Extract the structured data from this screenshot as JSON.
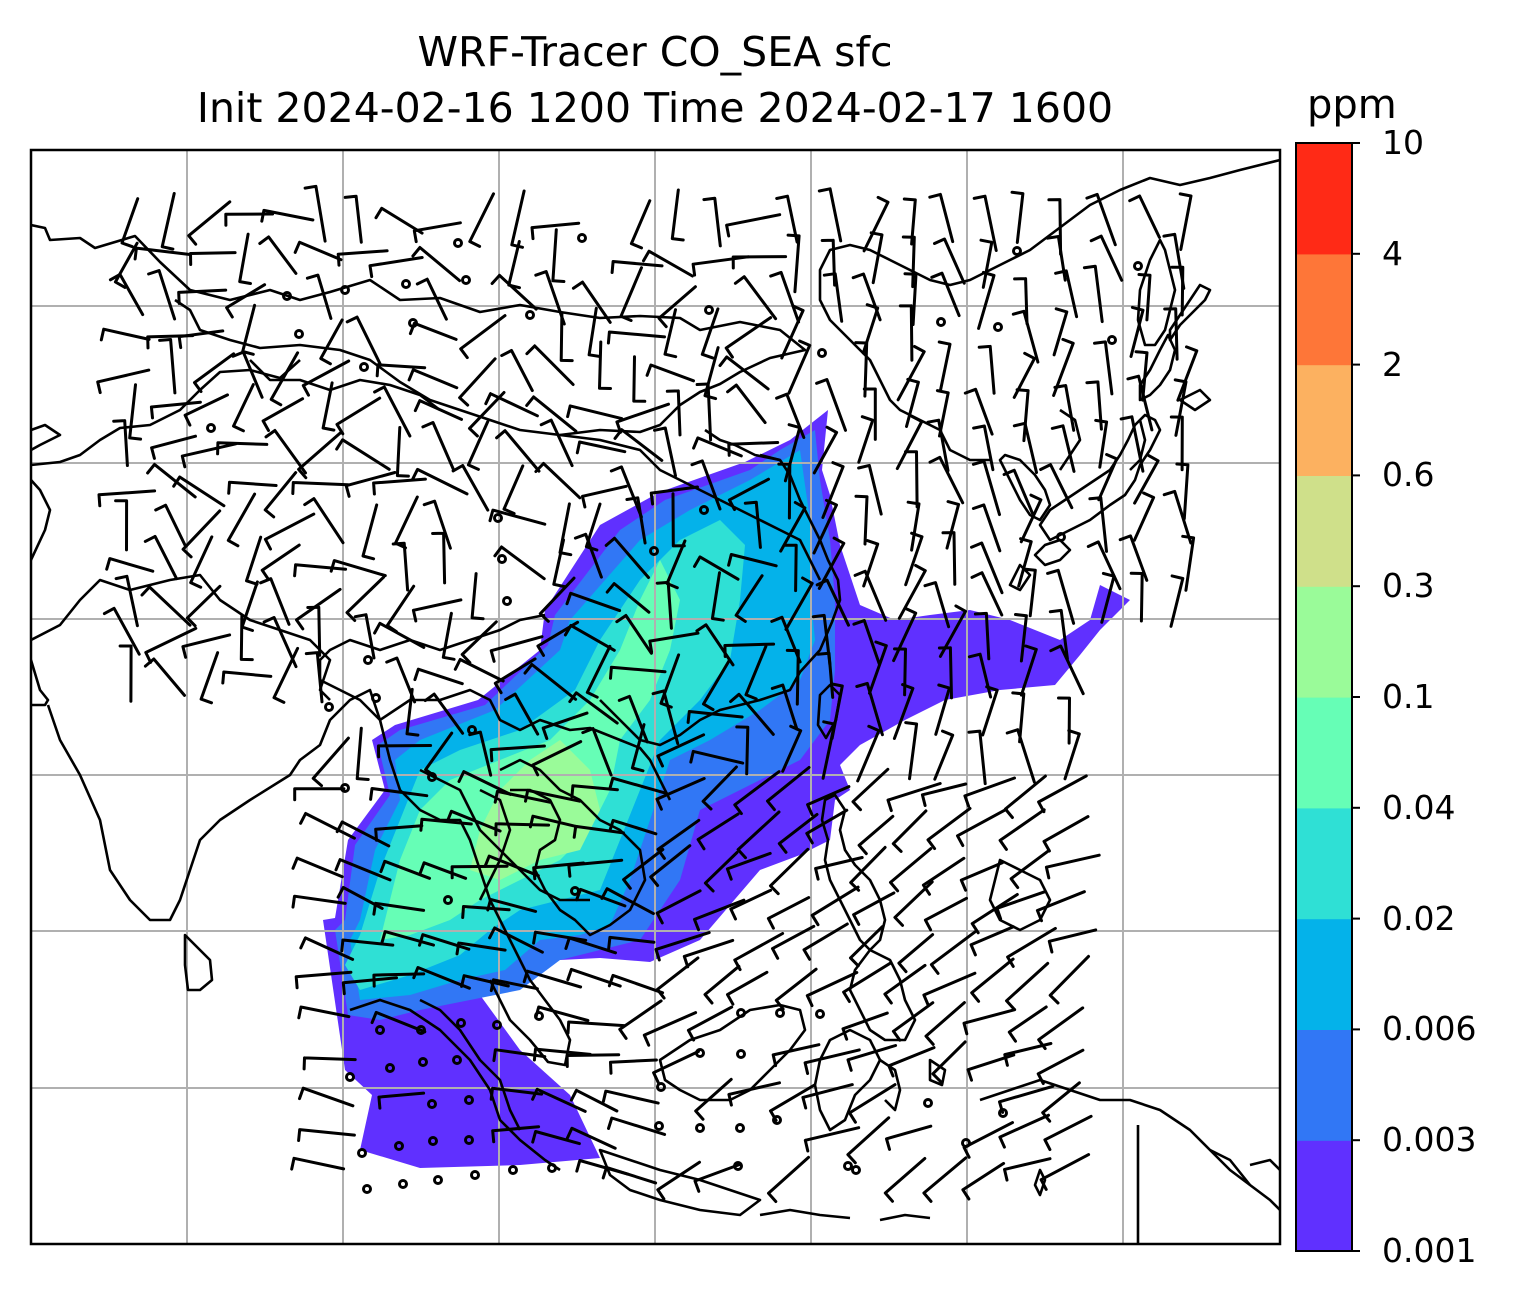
{
  "title": {
    "line1": "WRF-Tracer CO_SEA sfc",
    "line2": "Init 2024-02-16 1200 Time 2024-02-17 1600"
  },
  "colorbar": {
    "unit": "ppm",
    "ticks": [
      "0.001",
      "0.003",
      "0.006",
      "0.02",
      "0.04",
      "0.1",
      "0.3",
      "0.6",
      "2",
      "4",
      "10"
    ],
    "colors": [
      "#6030ff",
      "#3177f5",
      "#04b2ea",
      "#2fe0d5",
      "#66feb6",
      "#9afb99",
      "#cfe08a",
      "#fcb160",
      "#fe7638",
      "#ff2a16"
    ]
  },
  "map": {
    "variable": "CO_SEA tracer, surface",
    "overlay": "wind barbs",
    "gridlines": true,
    "coastlines_color": "#000000"
  }
}
